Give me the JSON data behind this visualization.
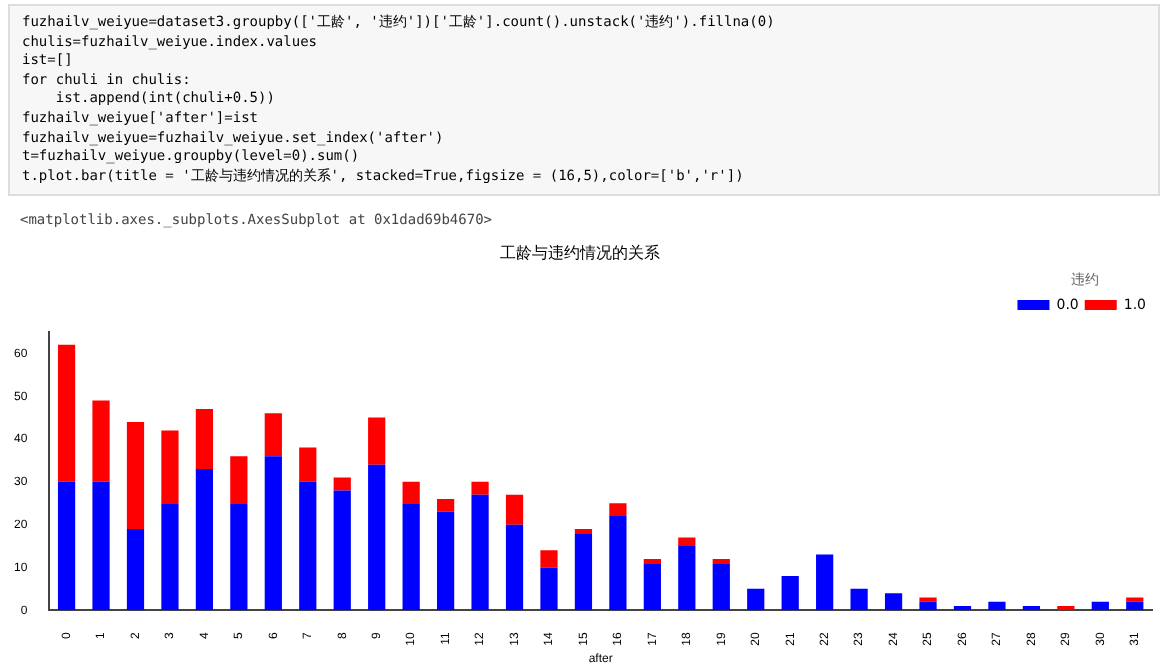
{
  "chart_data": {
    "type": "bar",
    "title": "工龄与违约情况的关系",
    "xlabel": "after",
    "legend_title": "违约",
    "stacked": true,
    "legend": "top right",
    "grid": false,
    "categories": [
      "0",
      "1",
      "2",
      "3",
      "4",
      "5",
      "6",
      "7",
      "8",
      "9",
      "10",
      "11",
      "12",
      "13",
      "14",
      "15",
      "16",
      "17",
      "18",
      "19",
      "20",
      "21",
      "22",
      "23",
      "24",
      "25",
      "26",
      "27",
      "28",
      "29",
      "30",
      "31"
    ],
    "series": [
      {
        "name": "0.0",
        "color": "#0000ff",
        "values": [
          30,
          30,
          19,
          25,
          33,
          25,
          36,
          30,
          28,
          34,
          25,
          23,
          27,
          20,
          10,
          18,
          22,
          11,
          15,
          11,
          5,
          8,
          13,
          5,
          4,
          2,
          1,
          2,
          1,
          0,
          2,
          2
        ]
      },
      {
        "name": "1.0",
        "color": "#ff0000",
        "values": [
          32,
          19,
          25,
          17,
          14,
          11,
          10,
          8,
          3,
          11,
          5,
          3,
          3,
          7,
          4,
          1,
          3,
          1,
          2,
          1,
          0,
          0,
          0,
          0,
          0,
          1,
          0,
          0,
          0,
          1,
          0,
          1
        ]
      }
    ],
    "ylim": [
      0,
      65
    ],
    "yticks": [
      0,
      10,
      20,
      30,
      40,
      50,
      60
    ],
    "annotations": [
      "fuzhailv_weiyue=dataset3.groupby(['工龄', '违约'])['工龄'].count().unstack('违约').fillna(0)",
      "chulis=fuzhailv_weiyue.index.values",
      "ist=[]",
      "for chuli in chulis:",
      "    ist.append(int(chuli+0.5))",
      "fuzhailv_weiyue['after']=ist",
      "fuzhailv_weiyue=fuzhailv_weiyue.set_index('after')",
      "t=fuzhailv_weiyue.groupby(level=0).sum()",
      "t.plot.bar(title = '工龄与违约情况的关系', stacked=True,figsize = (16,5),color=['b','r'])",
      "<matplotlib.axes._subplots.AxesSubplot at 0x1dad69b4670>"
    ]
  }
}
